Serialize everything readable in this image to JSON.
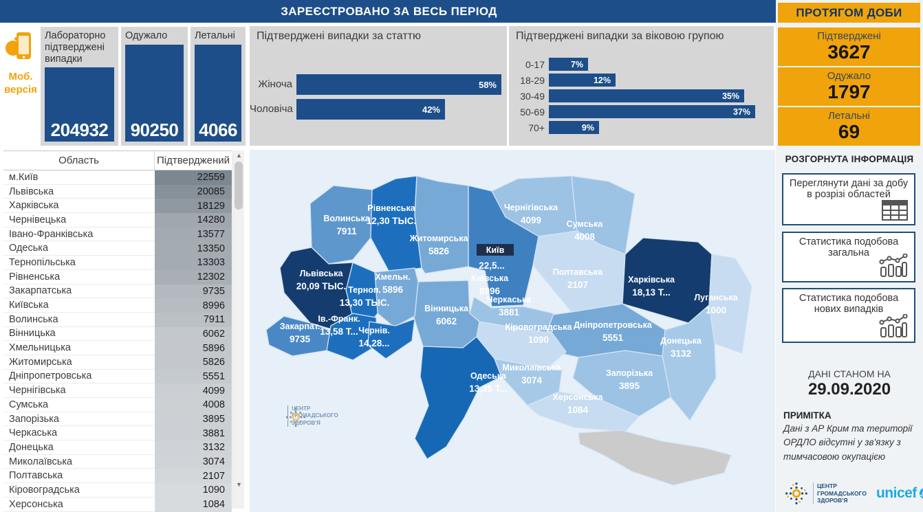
{
  "page": {
    "accent_navy": "#1D4E89",
    "accent_orange": "#F0A30A",
    "map_background": "#E7F0F8"
  },
  "header": {
    "title": "ЗАРЕЄСТРОВАНО ЗА ВЕСЬ ПЕРІОД"
  },
  "mobile": {
    "label": "Моб. версія"
  },
  "kpi_cards": [
    {
      "title": "Лабораторно підтверджені випадки",
      "value": "204932"
    },
    {
      "title": "Одужало",
      "value": "90250"
    },
    {
      "title": "Летальні",
      "value": "4066"
    }
  ],
  "daily": {
    "title": "ПРОТЯГОМ ДОБИ",
    "cards": [
      {
        "title": "Підтверджені",
        "value": "3627"
      },
      {
        "title": "Одужало",
        "value": "1797"
      },
      {
        "title": "Летальні",
        "value": "69"
      }
    ]
  },
  "sidebar": {
    "expanded_info_label": "РОЗГОРНУТА ІНФОРМАЦІЯ",
    "buttons": [
      {
        "label": "Переглянути дані за добу в розрізі областей",
        "icon": "table-icon"
      },
      {
        "label": "Статистика подобова загальна",
        "icon": "combo-chart-icon"
      },
      {
        "label": "Статистика подобова нових випадків",
        "icon": "combo-chart-icon"
      }
    ],
    "data_as_of_label": "ДАНІ СТАНОМ НА",
    "data_as_of_date": "29.09.2020",
    "note_title": "ПРИМІТКА",
    "note_text": "Дані з АР Крим та території ОРДЛО відсутні у зв'язку з тимчасовою окупацією",
    "unicef_label": "unicef"
  },
  "org": {
    "line1": "ЦЕНТР",
    "line2": "ГРОМАДСЬКОГО",
    "line3": "ЗДОРОВ'Я"
  },
  "chart_data": [
    {
      "type": "bar",
      "orientation": "horizontal",
      "title": "Підтверджені випадки за статтю",
      "categories": [
        "Жіноча",
        "Чоловіча"
      ],
      "values": [
        58,
        42
      ],
      "unit": "%",
      "bar_color": "#1D4E89",
      "xlim": [
        0,
        60
      ],
      "grid": false,
      "data_labels": "inside-end"
    },
    {
      "type": "bar",
      "orientation": "horizontal",
      "title": "Підтверджені випадки за віковою групою",
      "categories": [
        "0-17",
        "18-29",
        "30-49",
        "50-69",
        "70+"
      ],
      "values": [
        7,
        12,
        35,
        37,
        9
      ],
      "unit": "%",
      "bar_color": "#1D4E89",
      "xlim": [
        0,
        38
      ],
      "grid": false,
      "data_labels": "inside-end"
    },
    {
      "type": "choropleth",
      "title": "Підтверджені випадки за областями (карта)",
      "kyiv_city": {
        "name": "Київ",
        "value": "22,5...",
        "badge_color": "#1E2F4D"
      },
      "regions": [
        {
          "id": "volyn",
          "name": "Волинська",
          "value": "7911",
          "color": "#5E97CC"
        },
        {
          "id": "rivne",
          "name": "Рівненська",
          "value": "12,30 ТЫС.",
          "color": "#1D6FBE"
        },
        {
          "id": "zhytomyr",
          "name": "Житомирська",
          "value": "5826",
          "color": "#77A9D7"
        },
        {
          "id": "chernihiv",
          "name": "Чернігівська",
          "value": "4099",
          "color": "#9CC2E4"
        },
        {
          "id": "sumy",
          "name": "Сумська",
          "value": "4008",
          "color": "#9CC2E4"
        },
        {
          "id": "kyiv-obl",
          "name": "Київська",
          "value": "8996",
          "color": "#3F80C1"
        },
        {
          "id": "poltava",
          "name": "Полтавська",
          "value": "2107",
          "color": "#C7DCF1"
        },
        {
          "id": "kharkiv",
          "name": "Харківська",
          "value": "18,13 Т...",
          "color": "#153C6F"
        },
        {
          "id": "luhansk",
          "name": "Луганська",
          "value": "1000",
          "color": "#C7DCF1"
        },
        {
          "id": "donetsk",
          "name": "Донецька",
          "value": "3132",
          "color": "#A6C9E8"
        },
        {
          "id": "zaporizhzhia",
          "name": "Запорізька",
          "value": "3895",
          "color": "#9CC2E4"
        },
        {
          "id": "dnipro",
          "name": "Дніпропетровська",
          "value": "5551",
          "color": "#77A9D7"
        },
        {
          "id": "kirovohrad",
          "name": "Кіровоградська",
          "value": "1090",
          "color": "#C7DCF1"
        },
        {
          "id": "cherkasy",
          "name": "Черкаська",
          "value": "3881",
          "color": "#9CC2E4"
        },
        {
          "id": "vinnytsia",
          "name": "Вінницька",
          "value": "6062",
          "color": "#77A9D7"
        },
        {
          "id": "khmelnytskyi",
          "name": "Хмельн.",
          "value": "5896",
          "color": "#77A9D7"
        },
        {
          "id": "ternopil",
          "name": "Терноп.",
          "value": "13,30 ТЫС.",
          "color": "#1D6FBE"
        },
        {
          "id": "lviv",
          "name": "Львівська",
          "value": "20,09 ТЫС.",
          "color": "#153C6F"
        },
        {
          "id": "zakarpattia",
          "name": "Закарпат.",
          "value": "9735",
          "color": "#4A88C5"
        },
        {
          "id": "ivano-frankivsk",
          "name": "Ів.-Франк.",
          "value": "13,58 Т...",
          "color": "#1D6FBE"
        },
        {
          "id": "chernivtsi",
          "name": "Чернів.",
          "value": "14,28...",
          "color": "#1D6FBE"
        },
        {
          "id": "odesa",
          "name": "Одеська",
          "value": "13,35 Т...",
          "color": "#1668B4"
        },
        {
          "id": "mykolaiv",
          "name": "Миколаївська",
          "value": "3074",
          "color": "#A6C9E8"
        },
        {
          "id": "kherson",
          "name": "Херсонська",
          "value": "1084",
          "color": "#C7DCF1"
        },
        {
          "id": "crimea",
          "name": "",
          "value": "",
          "color": "#CBCBCB"
        }
      ]
    },
    {
      "type": "table",
      "columns": [
        "Область",
        "Підтверджений"
      ],
      "rows": [
        [
          "м.Київ",
          22559
        ],
        [
          "Львівська",
          20085
        ],
        [
          "Харківська",
          18129
        ],
        [
          "Чернівецька",
          14280
        ],
        [
          "Івано-Франківська",
          13577
        ],
        [
          "Одеська",
          13350
        ],
        [
          "Тернопільська",
          13303
        ],
        [
          "Рівненська",
          12302
        ],
        [
          "Закарпатська",
          9735
        ],
        [
          "Київська",
          8996
        ],
        [
          "Волинська",
          7911
        ],
        [
          "Вінницька",
          6062
        ],
        [
          "Хмельницька",
          5896
        ],
        [
          "Житомирська",
          5826
        ],
        [
          "Дніпропетровська",
          5551
        ],
        [
          "Чернігівська",
          4099
        ],
        [
          "Сумська",
          4008
        ],
        [
          "Запорізька",
          3895
        ],
        [
          "Черкаська",
          3881
        ],
        [
          "Донецька",
          3132
        ],
        [
          "Миколаївська",
          3074
        ],
        [
          "Полтавська",
          2107
        ],
        [
          "Кіровоградська",
          1090
        ],
        [
          "Херсонська",
          1084
        ]
      ]
    }
  ]
}
